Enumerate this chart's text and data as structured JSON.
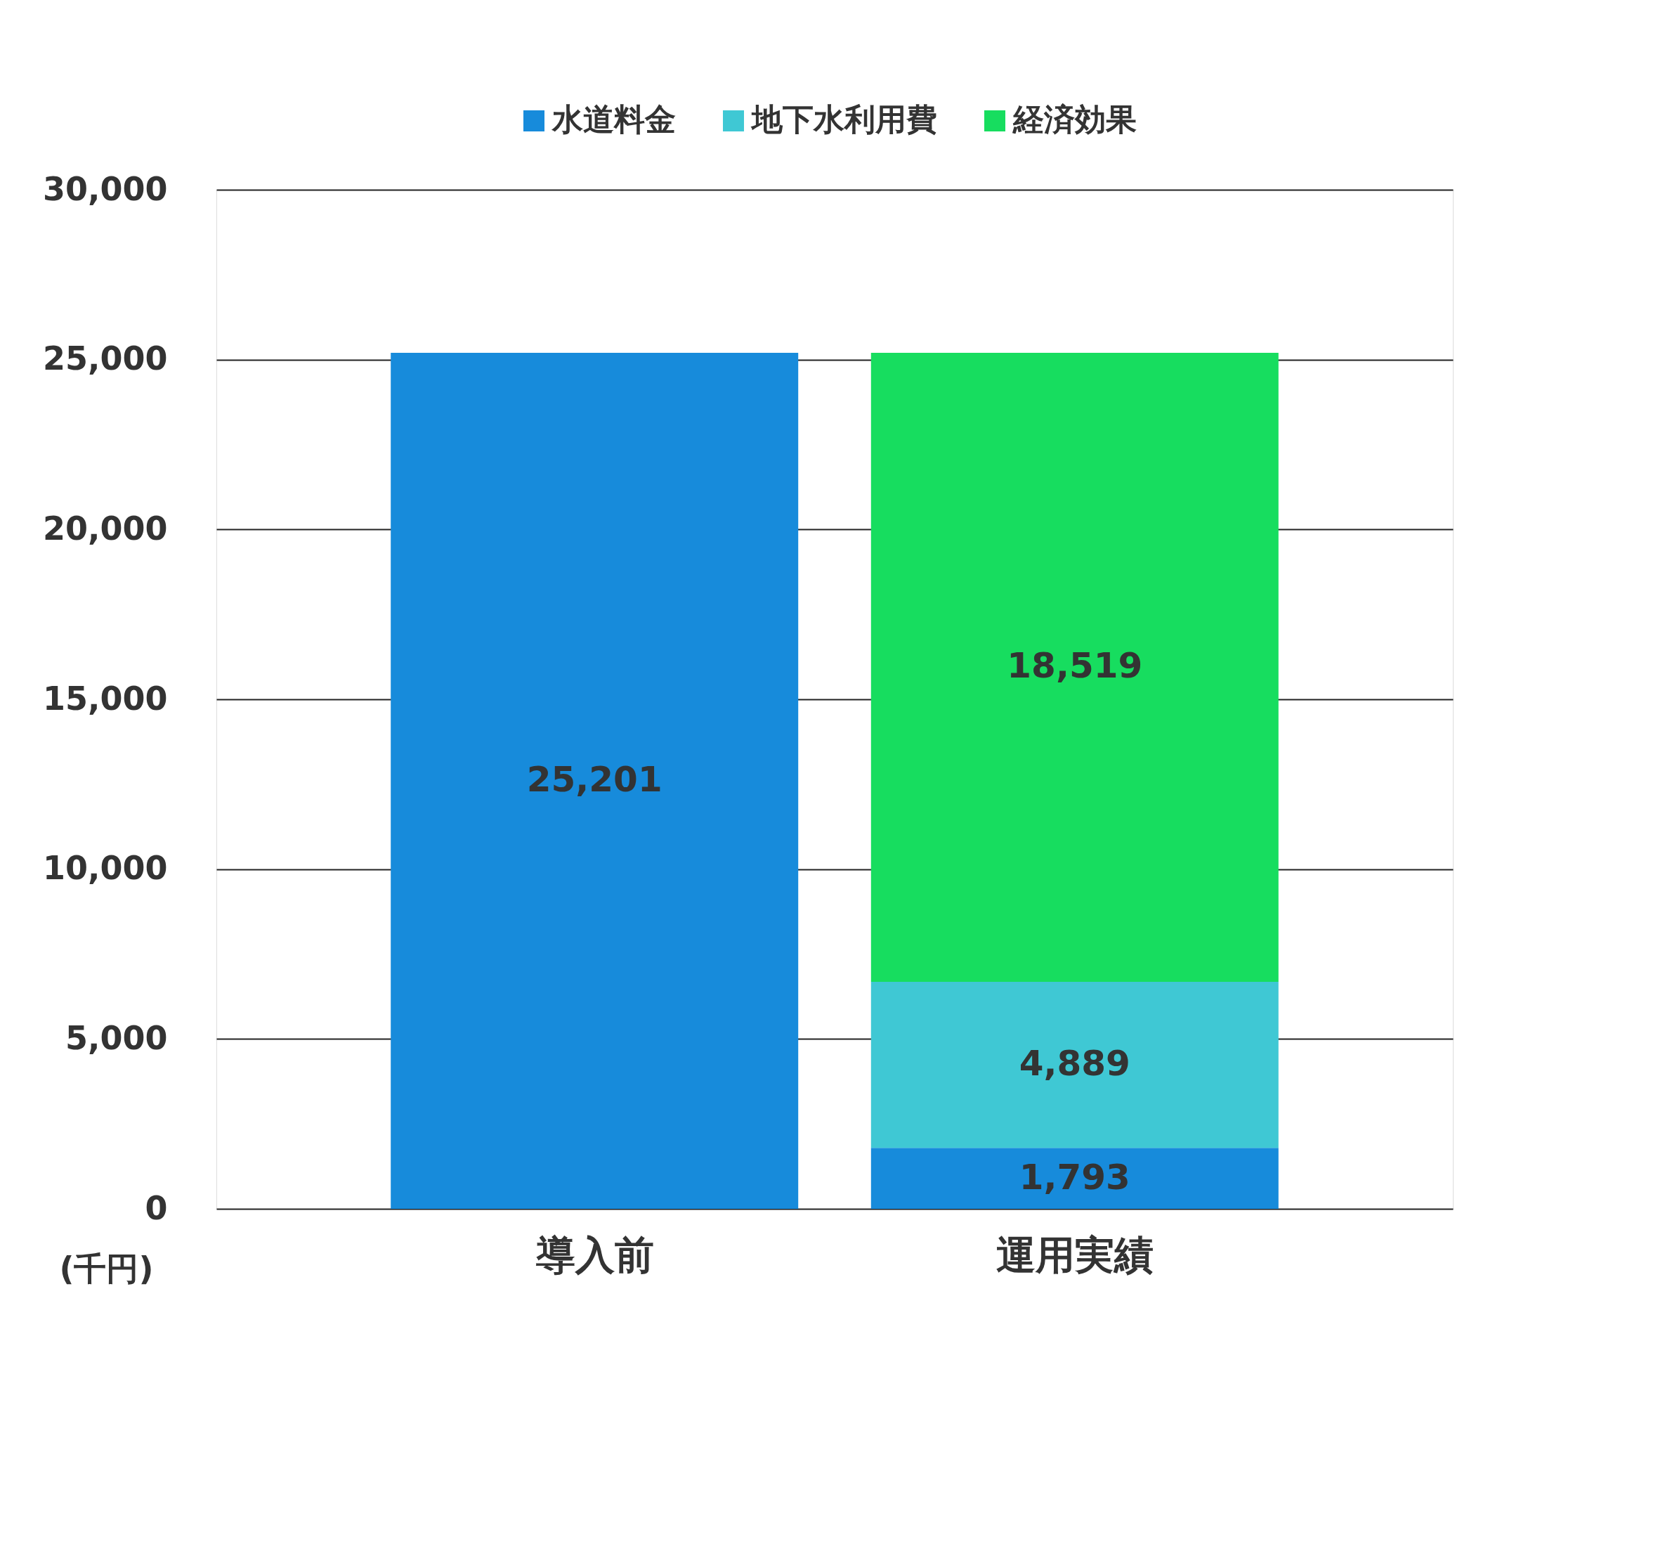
{
  "chart_data": {
    "type": "bar",
    "stacked": true,
    "ylabel": "(千円)",
    "categories": [
      "導入前",
      "運用実績"
    ],
    "series": [
      {
        "name": "水道料金",
        "color": "#178bdb",
        "values": [
          25201,
          1793
        ],
        "value_labels": [
          "25,201",
          "1,793"
        ]
      },
      {
        "name": "地下水利用費",
        "color": "#3fc8d4",
        "values": [
          null,
          4889
        ],
        "value_labels": [
          null,
          "4,889"
        ]
      },
      {
        "name": "経済効果",
        "color": "#17dd5f",
        "values": [
          null,
          18519
        ],
        "value_labels": [
          null,
          "18,519"
        ]
      }
    ],
    "ylim": [
      0,
      30000
    ],
    "yticks": [
      {
        "value": 0,
        "label": "0"
      },
      {
        "value": 5000,
        "label": "5,000"
      },
      {
        "value": 10000,
        "label": "10,000"
      },
      {
        "value": 15000,
        "label": "15,000"
      },
      {
        "value": 20000,
        "label": "20,000"
      },
      {
        "value": 25000,
        "label": "25,000"
      },
      {
        "value": 30000,
        "label": "30,000"
      }
    ],
    "grid": "y",
    "legend": "top right"
  }
}
